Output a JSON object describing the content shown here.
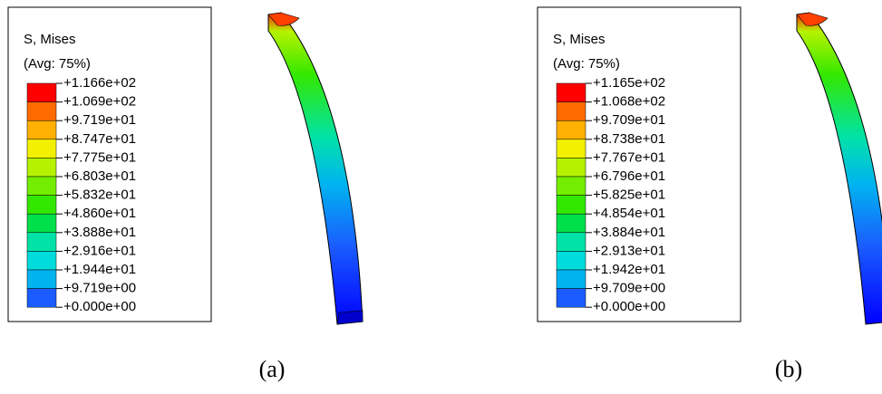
{
  "panels": [
    {
      "title": "S, Mises",
      "subtitle": "(Avg: 75%)",
      "labels": [
        "+1.166e+02",
        "+1.069e+02",
        "+9.719e+01",
        "+8.747e+01",
        "+7.775e+01",
        "+6.803e+01",
        "+5.832e+01",
        "+4.860e+01",
        "+3.888e+01",
        "+2.916e+01",
        "+1.944e+01",
        "+9.719e+00",
        "+0.000e+00"
      ],
      "caption": "(a)"
    },
    {
      "title": "S, Mises",
      "subtitle": "(Avg: 75%)",
      "labels": [
        "+1.165e+02",
        "+1.068e+02",
        "+9.709e+01",
        "+8.738e+01",
        "+7.767e+01",
        "+6.796e+01",
        "+5.825e+01",
        "+4.854e+01",
        "+3.884e+01",
        "+2.913e+01",
        "+1.942e+01",
        "+9.709e+00",
        "+0.000e+00"
      ],
      "caption": "(b)"
    }
  ],
  "colors": [
    "#ff0000",
    "#ff6a00",
    "#ffb000",
    "#f2f000",
    "#b6f200",
    "#74ee00",
    "#33e800",
    "#00e04a",
    "#00e2a8",
    "#00dcdc",
    "#00b4f0",
    "#1a5cff",
    "#0000ff"
  ]
}
